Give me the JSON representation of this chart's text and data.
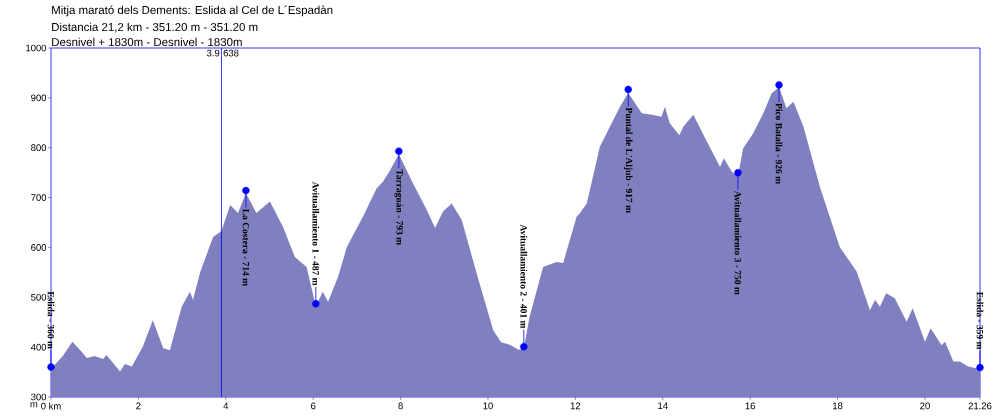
{
  "chart_data": {
    "type": "area",
    "title": "Mitja marató dels Dements: Eslida al Cel de L´Espadàn",
    "subtitle": "Distancia 21,2 km - 351.20 m - 351.20 m",
    "ylabel": "m",
    "annotations": [
      "Desnivel + 1830m - Desnivel - 1830m",
      "638",
      {
        "text": "Eslida - 360 m",
        "x": 0,
        "y": 360
      },
      {
        "text": "La Costera - 714 m",
        "x": 4.46,
        "y": 714
      },
      {
        "text": "Avituallamiento 1 - 487 m",
        "x": 6.06,
        "y": 487
      },
      {
        "text": "Tarraguán - 793 m",
        "x": 7.96,
        "y": 793
      },
      {
        "text": "Avituallamiento 2 - 401 m",
        "x": 10.82,
        "y": 401
      },
      {
        "text": "Puntal de L'Aljub - 917 m",
        "x": 13.21,
        "y": 917
      },
      {
        "text": "Avituallamiento 3 - 750 m",
        "x": 15.72,
        "y": 750
      },
      {
        "text": "Pico Batalla - 926 m",
        "x": 16.66,
        "y": 926
      },
      {
        "text": "Eslida - 359 m",
        "x": 21.26,
        "y": 359
      }
    ],
    "series": [
      {
        "color": "#8080c0",
        "x": [
          0,
          0.27,
          0.49,
          0.7,
          0.82,
          1.0,
          1.19,
          1.27,
          1.58,
          1.69,
          1.85,
          2.1,
          2.33,
          2.57,
          2.72,
          2.99,
          3.18,
          3.25,
          3.41,
          3.6,
          3.71,
          3.9,
          4.1,
          4.28,
          4.46,
          4.7,
          5.01,
          5.31,
          5.58,
          5.85,
          6.06,
          6.22,
          6.34,
          6.57,
          6.77,
          7.14,
          7.45,
          7.6,
          7.76,
          7.96,
          8.28,
          8.6,
          8.79,
          8.97,
          9.17,
          9.4,
          9.74,
          10.12,
          10.3,
          10.5,
          10.7,
          10.82,
          10.95,
          11.26,
          11.57,
          11.72,
          12.03,
          12.1,
          12.26,
          12.56,
          12.79,
          13.02,
          13.21,
          13.52,
          13.75,
          13.97,
          14.05,
          14.16,
          14.38,
          14.47,
          14.7,
          14.97,
          15.19,
          15.31,
          15.4,
          15.58,
          15.72,
          15.84,
          16.07,
          16.3,
          16.49,
          16.66,
          16.83,
          16.99,
          17.22,
          17.6,
          18.05,
          18.44,
          18.74,
          18.86,
          18.97,
          19.11,
          19.31,
          19.58,
          19.72,
          20.0,
          20.13,
          20.38,
          20.46,
          20.65,
          20.8,
          20.99,
          21.26
        ],
        "values": [
          356,
          382,
          411,
          391,
          378,
          382,
          376,
          384,
          351,
          366,
          361,
          401,
          454,
          398,
          394,
          481,
          511,
          495,
          549,
          595,
          621,
          633,
          685,
          669,
          709,
          669,
          692,
          641,
          581,
          561,
          482,
          511,
          491,
          541,
          601,
          662,
          718,
          732,
          755,
          787,
          729,
          675,
          639,
          672,
          688,
          655,
          548,
          434,
          410,
          405,
          395,
          398,
          460,
          561,
          571,
          569,
          662,
          668,
          688,
          802,
          842,
          882,
          910,
          869,
          866,
          862,
          882,
          849,
          825,
          842,
          866,
          819,
          782,
          762,
          779,
          752,
          743,
          799,
          829,
          869,
          909,
          922,
          879,
          892,
          842,
          720,
          601,
          551,
          474,
          495,
          481,
          508,
          498,
          451,
          478,
          411,
          438,
          404,
          411,
          371,
          371,
          361,
          356
        ]
      },
      {
        "type": "scatter",
        "color": "#0000ff",
        "marker": "circle",
        "x": [
          0,
          4.46,
          6.06,
          7.96,
          10.82,
          13.21,
          15.72,
          16.66,
          21.26
        ],
        "values": [
          360,
          714,
          487,
          793,
          401,
          917,
          750,
          926,
          359
        ]
      }
    ],
    "xlim": [
      0,
      21.26
    ],
    "ylim": [
      300,
      1000
    ],
    "xticks": [
      {
        "value": 0,
        "label": "0 km"
      },
      2,
      4,
      6,
      8,
      10,
      12,
      14,
      16,
      18,
      20,
      21.26
    ],
    "yticks": [
      300,
      400,
      500,
      600,
      700,
      800,
      900,
      1000
    ],
    "ref_lines": [
      {
        "axis": "x",
        "value": 3.9,
        "label": "3.9",
        "color": "#0000ff"
      }
    ]
  }
}
